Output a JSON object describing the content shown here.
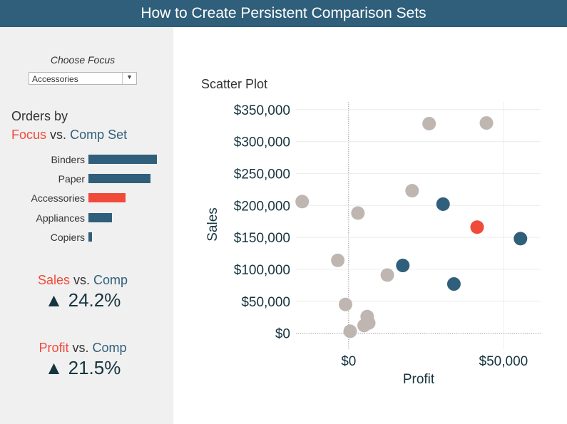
{
  "header": {
    "title": "How to Create Persistent Comparison Sets"
  },
  "sidebar": {
    "focus_label": "Choose Focus",
    "focus_select": {
      "value": "Accessories"
    },
    "orders_title": {
      "line1": "Orders by",
      "focus_word": "Focus",
      "vs_word": "vs.",
      "comp_word": "Comp Set"
    },
    "bars": [
      {
        "label": "Binders",
        "value": 96,
        "is_focus": false
      },
      {
        "label": "Paper",
        "value": 87,
        "is_focus": false
      },
      {
        "label": "Accessories",
        "value": 52,
        "is_focus": true
      },
      {
        "label": "Appliances",
        "value": 33,
        "is_focus": false
      },
      {
        "label": "Copiers",
        "value": 5,
        "is_focus": false
      }
    ],
    "kpis": [
      {
        "metric": "Sales",
        "vs": "vs.",
        "comp": "Comp",
        "arrow": "▲",
        "value": "24.2%"
      },
      {
        "metric": "Profit",
        "vs": "vs.",
        "comp": "Comp",
        "arrow": "▲",
        "value": "21.5%"
      }
    ]
  },
  "colors": {
    "focus": "#f04a3a",
    "comp": "#2f5f7a",
    "other": "#bfb6b1",
    "header": "#2f5f7a",
    "sidebar": "#f0f0f0"
  },
  "chart_data": {
    "type": "scatter",
    "title": "Scatter Plot",
    "xlabel": "Profit",
    "ylabel": "Sales",
    "xlim": [
      -17000,
      62000
    ],
    "ylim": [
      -25000,
      362000
    ],
    "xticks": [
      {
        "value": 0,
        "label": "$0"
      },
      {
        "value": 50000,
        "label": "$50,000"
      }
    ],
    "yticks": [
      {
        "value": 0,
        "label": "$0"
      },
      {
        "value": 50000,
        "label": "$50,000"
      },
      {
        "value": 100000,
        "label": "$100,000"
      },
      {
        "value": 150000,
        "label": "$150,000"
      },
      {
        "value": 200000,
        "label": "$200,000"
      },
      {
        "value": 250000,
        "label": "$250,000"
      },
      {
        "value": 300000,
        "label": "$300,000"
      },
      {
        "value": 350000,
        "label": "$350,000"
      }
    ],
    "grid": true,
    "series": [
      {
        "group": "other",
        "points": [
          [
            26000,
            328000
          ],
          [
            44500,
            329000
          ],
          [
            -15000,
            206000
          ],
          [
            20500,
            223000
          ],
          [
            3000,
            188000
          ],
          [
            -3500,
            114000
          ],
          [
            12500,
            91000
          ],
          [
            -1000,
            45000
          ],
          [
            6000,
            26000
          ],
          [
            6500,
            16000
          ],
          [
            5000,
            12000
          ],
          [
            500,
            3000
          ]
        ]
      },
      {
        "group": "comp",
        "points": [
          [
            30500,
            202000
          ],
          [
            55500,
            148000
          ],
          [
            17500,
            106000
          ],
          [
            34000,
            77000
          ]
        ]
      },
      {
        "group": "focus",
        "points": [
          [
            41500,
            166000
          ]
        ]
      }
    ]
  }
}
